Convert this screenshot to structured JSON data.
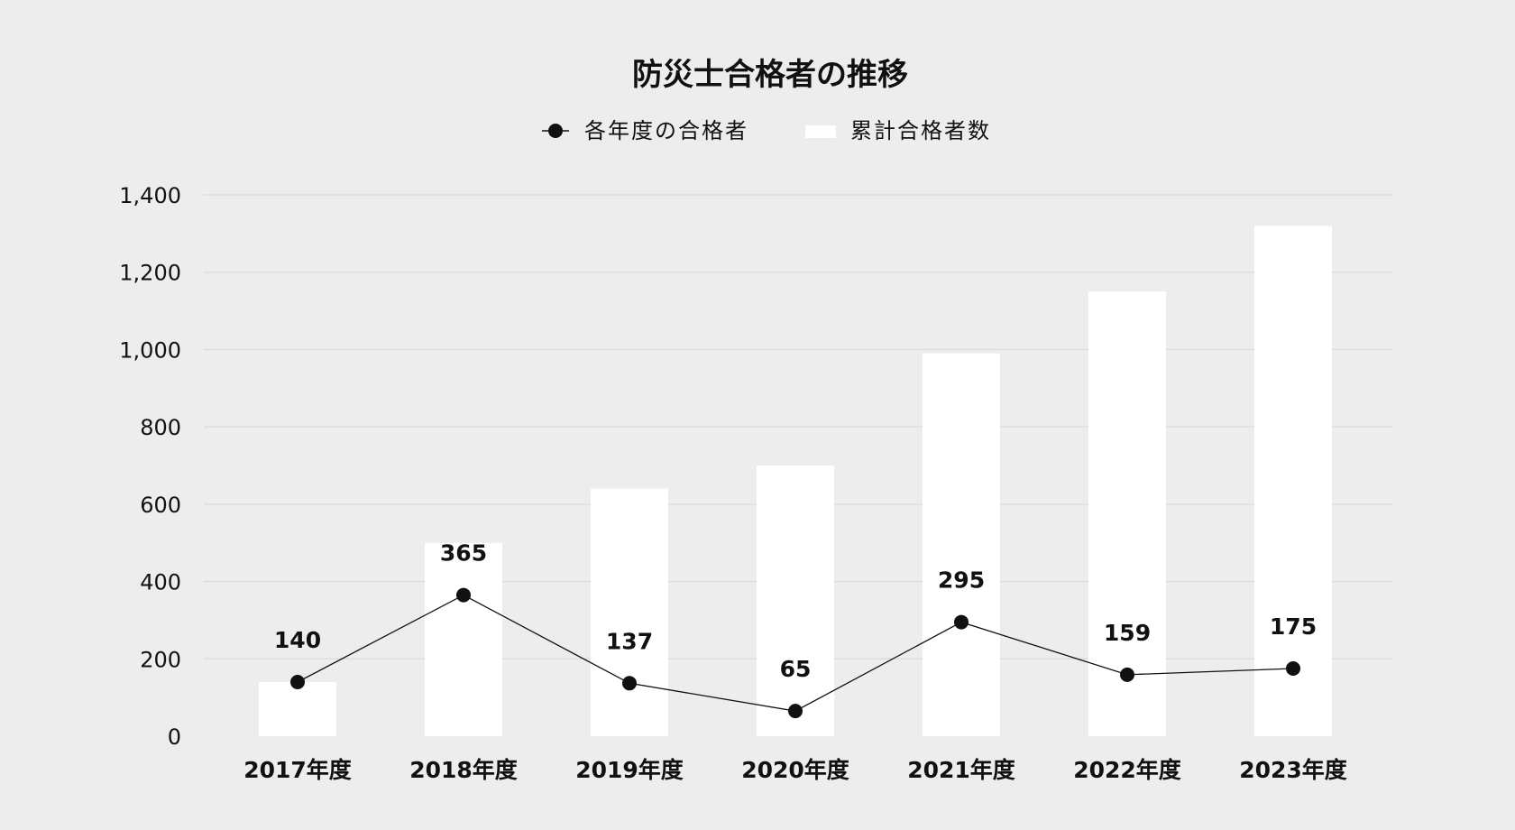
{
  "chart_data": {
    "type": "bar",
    "title": "防災士合格者の推移",
    "categories": [
      "2017年度",
      "2018年度",
      "2019年度",
      "2020年度",
      "2021年度",
      "2022年度",
      "2023年度"
    ],
    "series": [
      {
        "name": "累計合格者数",
        "type": "bar",
        "color": "#ffffff",
        "values": [
          140,
          500,
          640,
          700,
          990,
          1150,
          1320
        ]
      },
      {
        "name": "各年度の合格者",
        "type": "line",
        "color": "#111111",
        "values": [
          140,
          365,
          137,
          65,
          295,
          159,
          175
        ],
        "labels": [
          "140",
          "365",
          "137",
          "65",
          "295",
          "159",
          "175"
        ]
      }
    ],
    "yticks": [
      "0",
      "200",
      "400",
      "600",
      "800",
      "1,000",
      "1,200",
      "1,400"
    ],
    "ylim": [
      0,
      1400
    ],
    "grid": true,
    "legend_position": "top-center"
  }
}
